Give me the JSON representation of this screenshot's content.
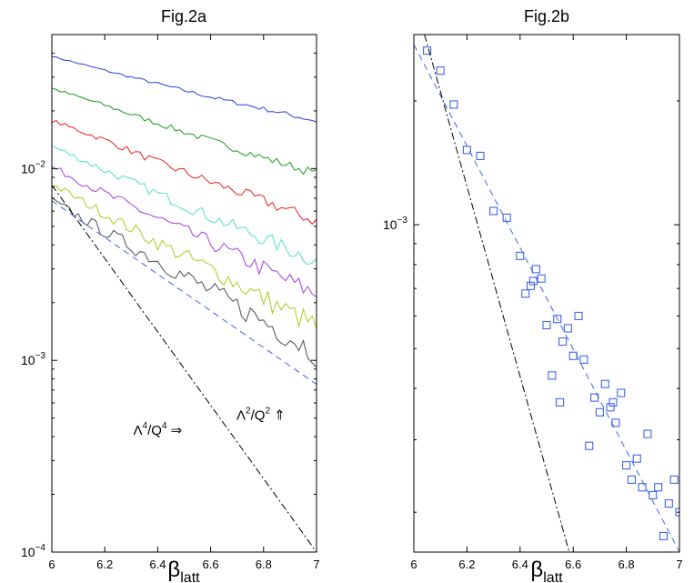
{
  "chart_data": [
    {
      "type": "line",
      "title": "Fig.2a",
      "xlabel": "β",
      "xlabel_sub": "latt",
      "ylabel": "",
      "yscale": "log",
      "xlim": [
        6,
        7
      ],
      "ylim": [
        0.0001,
        0.05
      ],
      "xticks": [
        6,
        6.2,
        6.4,
        6.6,
        6.8,
        7
      ],
      "xtick_labels": [
        "6",
        "6.2",
        "6.4",
        "6.6",
        "6.8",
        "7"
      ],
      "yticks": [
        {
          "value": 0.01,
          "base": "10",
          "exp": "−2"
        },
        {
          "value": 0.001,
          "base": "10",
          "exp": "−3"
        },
        {
          "value": 0.0001,
          "base": "10",
          "exp": "−4"
        }
      ],
      "grid": false,
      "series": [
        {
          "name": "blue",
          "color": "#2a3fd6",
          "style": "solid",
          "x": [
            6,
            6.2,
            6.4,
            6.6,
            6.8,
            7
          ],
          "y": [
            0.0385,
            0.0325,
            0.0277,
            0.0236,
            0.0205,
            0.0177
          ]
        },
        {
          "name": "green",
          "color": "#169c16",
          "style": "solid",
          "x": [
            6,
            6.2,
            6.4,
            6.6,
            6.8,
            7
          ],
          "y": [
            0.0262,
            0.0214,
            0.0172,
            0.014,
            0.0114,
            0.0094
          ]
        },
        {
          "name": "red",
          "color": "#e8221c",
          "style": "solid",
          "x": [
            6,
            6.2,
            6.4,
            6.6,
            6.8,
            7
          ],
          "y": [
            0.0178,
            0.0141,
            0.0108,
            0.0085,
            0.0068,
            0.0053
          ]
        },
        {
          "name": "cyan",
          "color": "#4fe0c8",
          "style": "solid",
          "x": [
            6,
            6.2,
            6.4,
            6.6,
            6.8,
            7
          ],
          "y": [
            0.0131,
            0.0098,
            0.0074,
            0.0056,
            0.0043,
            0.0033
          ]
        },
        {
          "name": "magenta",
          "color": "#a43ee0",
          "style": "solid",
          "x": [
            6,
            6.2,
            6.4,
            6.6,
            6.8,
            7
          ],
          "y": [
            0.0102,
            0.0074,
            0.0055,
            0.0041,
            0.003,
            0.0022
          ]
        },
        {
          "name": "yellow-green",
          "color": "#b2c81e",
          "style": "solid",
          "x": [
            6,
            6.2,
            6.4,
            6.6,
            6.8,
            7
          ],
          "y": [
            0.0083,
            0.0058,
            0.0041,
            0.003,
            0.0021,
            0.0015
          ]
        },
        {
          "name": "dark gray",
          "color": "#4a4f5a",
          "style": "solid",
          "x": [
            6,
            6.2,
            6.4,
            6.6,
            6.8,
            7
          ],
          "y": [
            0.0068,
            0.0047,
            0.0033,
            0.0023,
            0.0016,
            0.0011
          ]
        },
        {
          "name": "Λ²/Q² fit",
          "color": "#3f66e8",
          "style": "dashed",
          "x": [
            6,
            7
          ],
          "y": [
            0.0068,
            0.00075
          ]
        },
        {
          "name": "Λ⁴/Q⁴ fit",
          "color": "#000000",
          "style": "dashdot",
          "x": [
            6,
            7
          ],
          "y": [
            0.0082,
            0.0001
          ]
        }
      ],
      "annotations": [
        {
          "text_pre": "Λ",
          "sup1": "4",
          "text_mid": "/Q",
          "sup2": "4",
          "arrow": " ⇒",
          "x": 6.4,
          "y": 0.00041
        },
        {
          "text_pre": "Λ",
          "sup1": "2",
          "text_mid": "/Q",
          "sup2": "2",
          "arrow": " ⇑",
          "x": 6.79,
          "y": 0.00049
        }
      ]
    },
    {
      "type": "scatter",
      "title": "Fig.2b",
      "xlabel": "β",
      "xlabel_sub": "latt",
      "ylabel": "",
      "yscale": "log",
      "xlim": [
        6,
        7
      ],
      "ylim": [
        0.00016,
        0.0029
      ],
      "xticks": [
        6,
        6.2,
        6.4,
        6.6,
        6.8,
        7
      ],
      "xtick_labels": [
        "6",
        "6.2",
        "6.4",
        "6.6",
        "6.8",
        "7"
      ],
      "yticks": [
        {
          "value": 0.001,
          "base": "10",
          "exp": "−3"
        }
      ],
      "grid": false,
      "series": [
        {
          "name": "data",
          "color": "#3f66e8",
          "marker": "square",
          "x": [
            6.05,
            6.1,
            6.15,
            6.2,
            6.25,
            6.3,
            6.35,
            6.4,
            6.42,
            6.44,
            6.45,
            6.46,
            6.48,
            6.5,
            6.52,
            6.54,
            6.55,
            6.56,
            6.58,
            6.6,
            6.62,
            6.64,
            6.66,
            6.68,
            6.7,
            6.72,
            6.74,
            6.75,
            6.76,
            6.78,
            6.8,
            6.82,
            6.84,
            6.86,
            6.88,
            6.9,
            6.92,
            6.94,
            6.96,
            6.98,
            7.0
          ],
          "y": [
            0.00265,
            0.00237,
            0.00196,
            0.00152,
            0.00147,
            0.00108,
            0.00104,
            0.00084,
            0.00068,
            0.00071,
            0.00073,
            0.00078,
            0.00074,
            0.00057,
            0.00043,
            0.00059,
            0.00037,
            0.00052,
            0.00056,
            0.00048,
            0.0006,
            0.00047,
            0.00029,
            0.00038,
            0.00035,
            0.00041,
            0.00036,
            0.00037,
            0.00033,
            0.00039,
            0.00026,
            0.00024,
            0.00027,
            0.00023,
            0.00031,
            0.00022,
            0.00023,
            0.000175,
            0.00021,
            0.00024,
            0.0002
          ]
        },
        {
          "name": "fit",
          "color": "#3f66e8",
          "style": "dashed",
          "x": [
            6,
            7
          ],
          "y": [
            0.00274,
            0.00016
          ]
        },
        {
          "name": "Λ⁴/Q⁴",
          "color": "#000000",
          "style": "dashdot",
          "x": [
            6.04,
            6.585
          ],
          "y": [
            0.0029,
            0.00016
          ]
        }
      ]
    }
  ]
}
